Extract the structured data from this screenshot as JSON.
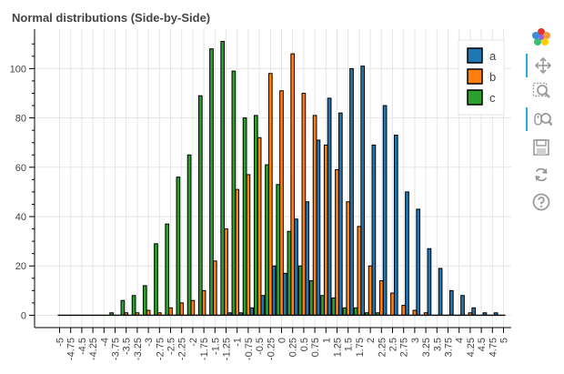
{
  "chart_data": {
    "type": "bar",
    "title": "Normal distributions (Side-by-Side)",
    "xlabel": "",
    "ylabel": "",
    "ylim": [
      -5,
      116
    ],
    "y_ticks": [
      0,
      20,
      40,
      60,
      80,
      100
    ],
    "categories": [
      "-5",
      "-4.75",
      "-4.5",
      "-4.25",
      "-4",
      "-3.75",
      "-3.5",
      "-3.25",
      "-3",
      "-2.75",
      "-2.5",
      "-2.25",
      "-2",
      "-1.75",
      "-1.5",
      "-1.25",
      "-1",
      "-0.75",
      "-0.5",
      "-0.25",
      "0",
      "0.25",
      "0.5",
      "0.75",
      "1",
      "1.25",
      "1.5",
      "1.75",
      "2",
      "2.25",
      "2.5",
      "2.75",
      "3",
      "3.25",
      "3.5",
      "3.75",
      "4",
      "4.25",
      "4.5",
      "4.75",
      "5"
    ],
    "series": [
      {
        "name": "a",
        "color": "#1f77b4",
        "values": [
          0,
          0,
          0,
          0,
          0,
          0,
          0,
          0,
          0,
          0,
          0,
          0,
          0,
          0,
          0,
          1,
          1,
          3,
          8,
          20,
          17,
          39,
          46,
          71,
          88,
          82,
          100,
          101,
          69,
          85,
          73,
          50,
          43,
          27,
          19,
          10,
          8,
          3,
          1,
          1,
          0
        ]
      },
      {
        "name": "b",
        "color": "#ff7f0e",
        "values": [
          0,
          0,
          0,
          0,
          0,
          0,
          1,
          1,
          2,
          1,
          3,
          5,
          6,
          10,
          22,
          35,
          51,
          57,
          72,
          98,
          91,
          106,
          90,
          81,
          69,
          59,
          46,
          36,
          20,
          14,
          9,
          4,
          2,
          1,
          0,
          0,
          0,
          1,
          0,
          0,
          0
        ]
      },
      {
        "name": "c",
        "color": "#2ca02c",
        "values": [
          0,
          0,
          0,
          0,
          0,
          1,
          6,
          8,
          12,
          29,
          37,
          56,
          65,
          89,
          108,
          111,
          99,
          80,
          81,
          61,
          53,
          34,
          20,
          14,
          8,
          7,
          3,
          3,
          1,
          1,
          0,
          0,
          0,
          0,
          0,
          0,
          0,
          0,
          0,
          0,
          0
        ]
      }
    ],
    "legend": {
      "position": "top-right",
      "entries": [
        "a",
        "b",
        "c"
      ]
    },
    "grid": true
  },
  "toolbar": {
    "tools": [
      {
        "name": "bokeh-logo-icon",
        "interactable": true,
        "active": false
      },
      {
        "name": "pan-tool-icon",
        "interactable": true,
        "active": true
      },
      {
        "name": "box-zoom-tool-icon",
        "interactable": true,
        "active": false
      },
      {
        "name": "wheel-zoom-tool-icon",
        "interactable": true,
        "active": true
      },
      {
        "name": "save-tool-icon",
        "interactable": true,
        "active": false
      },
      {
        "name": "reset-tool-icon",
        "interactable": true,
        "active": false
      },
      {
        "name": "help-tool-icon",
        "interactable": true,
        "active": false
      }
    ]
  }
}
